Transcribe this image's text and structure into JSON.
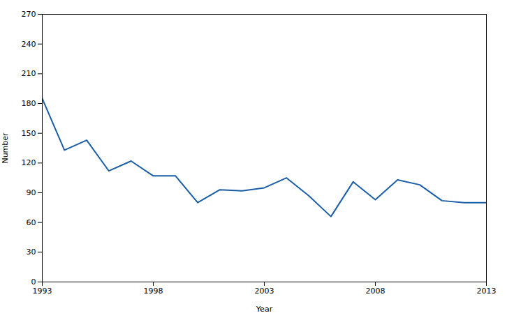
{
  "chart_data": {
    "type": "line",
    "x": [
      1993,
      1994,
      1995,
      1996,
      1997,
      1998,
      1999,
      2000,
      2001,
      2002,
      2003,
      2004,
      2005,
      2006,
      2007,
      2008,
      2009,
      2010,
      2011,
      2012,
      2013
    ],
    "values": [
      185,
      133,
      143,
      112,
      122,
      107,
      107,
      80,
      93,
      92,
      95,
      105,
      87,
      66,
      101,
      83,
      103,
      98,
      82,
      80,
      80
    ],
    "color": "#1B5EA8",
    "xlabel": "Year",
    "ylabel": "Number",
    "xlim": [
      1993,
      2013
    ],
    "ylim": [
      0,
      270
    ],
    "xticks": [
      1993,
      1998,
      2003,
      2008,
      2013
    ],
    "yticks": [
      0,
      30,
      60,
      90,
      120,
      150,
      180,
      210,
      240,
      270
    ],
    "grid": false
  }
}
